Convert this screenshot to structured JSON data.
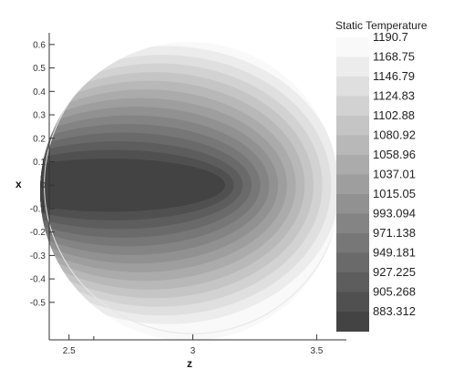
{
  "chart_data": {
    "type": "heatmap",
    "title": "",
    "xlabel": "z",
    "ylabel": "x",
    "xlim": [
      2.42,
      3.62
    ],
    "ylim": [
      -0.66,
      0.65
    ],
    "x_ticks": [
      "2.5",
      "3",
      "3.5"
    ],
    "x_minor_ticks": [
      2.6
    ],
    "y_ticks": [
      "0.6",
      "0.5",
      "0.4",
      "0.3",
      "0.2",
      "0.1",
      "0",
      "-0.1",
      "-0.2",
      "-0.3",
      "-0.4",
      "-0.5"
    ],
    "domain": {
      "shape": "circle",
      "center_z": 3.0,
      "center_x": 0.0,
      "radius": 0.6
    },
    "field_description": "Static temperature contour: coolest core centered near z=3.0, x=0 extending left to the boundary; temperature rises toward the right edge.",
    "colorbar": {
      "title": "Static Temperature",
      "levels": [
        "1190.7",
        "1168.75",
        "1146.79",
        "1124.83",
        "1102.88",
        "1080.92",
        "1058.96",
        "1037.01",
        "1015.05",
        "993.094",
        "971.138",
        "949.181",
        "927.225",
        "905.268",
        "883.312"
      ],
      "colors": [
        "#f9f9f9",
        "#ececec",
        "#dfdfdf",
        "#d2d2d2",
        "#c5c5c5",
        "#b8b8b8",
        "#ababab",
        "#9e9e9e",
        "#919191",
        "#848484",
        "#777777",
        "#6a6a6a",
        "#5d5d5d",
        "#505050",
        "#434343"
      ]
    }
  }
}
